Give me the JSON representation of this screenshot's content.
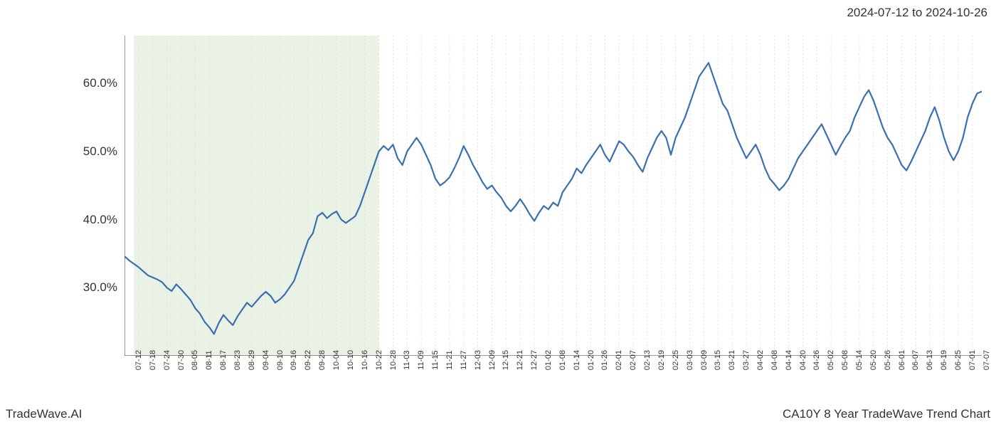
{
  "date_range_label": "2024-07-12 to 2024-10-26",
  "footer_left": "TradeWave.AI",
  "footer_right": "CA10Y 8 Year TradeWave Trend Chart",
  "chart": {
    "type": "line",
    "background_color": "#ffffff",
    "line_color": "#3a6fb0",
    "line_width": 2.2,
    "grid_color": "#dddddd",
    "grid_dash": "2,3",
    "axis_color": "#333333",
    "tick_color": "#333333",
    "highlight_fill": "#d9e8d0",
    "highlight_opacity": 0.55,
    "title_fontsize": 17,
    "label_fontsize": 17,
    "xlabel_fontsize": 11,
    "y_min": 20,
    "y_max": 67,
    "y_ticks": [
      30.0,
      40.0,
      50.0,
      60.0
    ],
    "y_tick_labels": [
      "30.0%",
      "40.0%",
      "50.0%",
      "60.0%"
    ],
    "x_tick_indices": [
      0,
      3,
      6,
      9,
      12,
      15,
      18,
      21,
      24,
      27,
      30,
      33,
      36,
      39,
      42,
      45,
      48,
      51,
      54,
      57,
      60,
      63,
      66,
      69,
      72,
      75,
      78,
      81,
      84,
      87,
      90,
      93,
      96,
      99,
      102,
      105,
      108,
      111,
      114,
      117,
      120,
      123,
      126,
      129,
      132,
      135,
      138,
      141,
      144,
      147,
      150,
      153,
      156,
      159,
      162,
      165,
      168,
      171,
      174,
      177,
      180
    ],
    "x_tick_labels": [
      "07-12",
      "07-18",
      "07-24",
      "07-30",
      "08-05",
      "08-11",
      "08-17",
      "08-23",
      "08-29",
      "09-04",
      "09-10",
      "09-16",
      "09-22",
      "09-28",
      "10-04",
      "10-10",
      "10-16",
      "10-22",
      "10-28",
      "11-03",
      "11-09",
      "11-15",
      "11-21",
      "11-27",
      "12-03",
      "12-09",
      "12-15",
      "12-21",
      "12-27",
      "01-02",
      "01-08",
      "01-14",
      "01-20",
      "01-26",
      "02-01",
      "02-07",
      "02-13",
      "02-19",
      "02-25",
      "03-03",
      "03-09",
      "03-15",
      "03-21",
      "03-27",
      "04-02",
      "04-08",
      "04-14",
      "04-20",
      "04-26",
      "05-02",
      "05-08",
      "05-14",
      "05-20",
      "05-26",
      "06-01",
      "06-07",
      "06-13",
      "06-19",
      "06-25",
      "07-01",
      "07-07"
    ],
    "highlight_start_index": 2,
    "highlight_end_index": 54,
    "n_points": 183,
    "values": [
      34.6,
      34.0,
      33.5,
      33.0,
      32.4,
      31.8,
      31.5,
      31.2,
      30.8,
      30.0,
      29.5,
      30.5,
      29.8,
      29.0,
      28.2,
      27.0,
      26.2,
      25.0,
      24.2,
      23.2,
      24.8,
      26.0,
      25.2,
      24.5,
      25.8,
      26.8,
      27.8,
      27.2,
      28.0,
      28.8,
      29.4,
      28.8,
      27.8,
      28.3,
      29.0,
      30.0,
      31.0,
      33.0,
      35.0,
      37.0,
      38.0,
      40.5,
      41.0,
      40.2,
      40.8,
      41.2,
      40.0,
      39.5,
      40.0,
      40.5,
      42.0,
      44.0,
      46.0,
      48.0,
      50.0,
      50.8,
      50.2,
      51.0,
      49.0,
      48.0,
      50.0,
      51.0,
      52.0,
      51.0,
      49.5,
      48.0,
      46.0,
      45.0,
      45.5,
      46.2,
      47.5,
      49.0,
      50.8,
      49.5,
      48.0,
      46.8,
      45.5,
      44.5,
      45.0,
      44.0,
      43.2,
      42.0,
      41.2,
      42.0,
      43.0,
      42.0,
      40.8,
      39.8,
      41.0,
      42.0,
      41.5,
      42.5,
      42.0,
      44.0,
      45.0,
      46.0,
      47.5,
      46.8,
      48.0,
      49.0,
      50.0,
      51.0,
      49.5,
      48.5,
      50.0,
      51.5,
      51.0,
      50.0,
      49.2,
      48.0,
      47.0,
      49.0,
      50.5,
      52.0,
      53.0,
      52.0,
      49.5,
      52.0,
      53.5,
      55.0,
      57.0,
      59.0,
      61.0,
      62.0,
      63.0,
      61.0,
      59.0,
      57.0,
      56.0,
      54.0,
      52.0,
      50.5,
      49.0,
      50.0,
      51.0,
      49.5,
      47.5,
      46.0,
      45.2,
      44.3,
      45.0,
      46.0,
      47.5,
      49.0,
      50.0,
      51.0,
      52.0,
      53.0,
      54.0,
      52.5,
      51.0,
      49.5,
      50.8,
      52.0,
      53.0,
      55.0,
      56.5,
      58.0,
      59.0,
      57.5,
      55.5,
      53.5,
      52.0,
      51.0,
      49.5,
      48.0,
      47.2,
      48.5,
      50.0,
      51.5,
      53.0,
      55.0,
      56.5,
      54.5,
      52.0,
      50.0,
      48.7,
      50.0,
      52.0,
      55.0,
      57.0,
      58.5,
      58.8
    ]
  }
}
